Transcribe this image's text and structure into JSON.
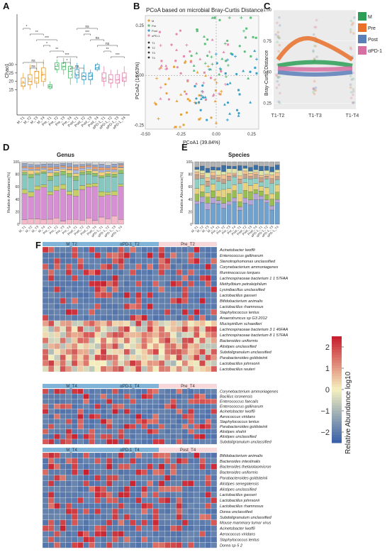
{
  "panel_letters": [
    "A",
    "B",
    "C",
    "D",
    "E",
    "F"
  ],
  "colors": {
    "M": "#e8a23c",
    "Pre": "#5bbf7a",
    "Post": "#3aa0c9",
    "aPD1": "#e48ab0",
    "heat_low": "#3b62a8",
    "heat_mid": "#f6f1c0",
    "heat_high": "#c8202f",
    "sig_green": "#2e9e57",
    "sig_orange": "#e8702a",
    "sig_blue": "#5a7fb8",
    "sig_pink": "#d86fa3"
  },
  "chart_data": [
    {
      "id": "A",
      "type": "box",
      "ylabel": "Chao1",
      "ylim": [
        0,
        60
      ],
      "yticks": [
        15,
        20,
        25,
        30
      ],
      "categories": [
        "M_T1",
        "M_T2",
        "M_T3",
        "M_T4",
        "Pre_T1",
        "Pre_T2",
        "Pre_T3",
        "Pre_T4",
        "Post_T1",
        "Post_T2",
        "Post_T3",
        "Post_T4",
        "αPD-1_T1",
        "αPD-1_T2",
        "αPD-1_T3",
        "αPD-1_T4"
      ],
      "group_colors": [
        "#e8a23c",
        "#e8a23c",
        "#e8a23c",
        "#e8a23c",
        "#5bbf7a",
        "#5bbf7a",
        "#5bbf7a",
        "#5bbf7a",
        "#3aa0c9",
        "#3aa0c9",
        "#3aa0c9",
        "#3aa0c9",
        "#e48ab0",
        "#e48ab0",
        "#e48ab0",
        "#e48ab0"
      ],
      "medians": [
        19,
        20,
        22,
        24,
        17,
        29,
        29,
        26,
        24,
        23,
        23,
        28,
        22,
        21,
        21,
        22
      ],
      "q1": [
        17,
        18,
        19,
        20,
        16,
        27,
        27,
        22,
        22,
        21,
        21,
        27,
        20,
        19,
        19,
        20
      ],
      "q3": [
        22,
        24,
        26,
        28,
        18,
        31,
        31,
        29,
        27,
        25,
        25,
        30,
        25,
        24,
        24,
        25
      ],
      "whisker_low": [
        15,
        15,
        16,
        17,
        15,
        25,
        24,
        18,
        19,
        18,
        18,
        26,
        17,
        16,
        16,
        17
      ],
      "whisker_high": [
        25,
        30,
        31,
        33,
        20,
        33,
        34,
        34,
        31,
        30,
        27,
        31,
        29,
        27,
        27,
        29
      ],
      "significance": [
        "*",
        "**",
        "***",
        "*",
        "**",
        "***",
        "*",
        "ns",
        "ns",
        "***",
        "ns",
        "ns",
        "**",
        "***",
        "ns",
        "ns"
      ]
    },
    {
      "id": "B",
      "type": "scatter",
      "title": "PCoA based on microbial Bray-Curtis Distance",
      "xlabel": "PCoA1 (39.84%)",
      "ylabel": "PCoA2 (16.63%)",
      "xlim": [
        -0.5,
        0.3
      ],
      "ylim": [
        -0.27,
        0.3
      ],
      "xticks": [
        -0.5,
        -0.25,
        0.0,
        0.25
      ],
      "yticks": [
        -0.25,
        0.0,
        0.25
      ],
      "legend_groups": [
        "M",
        "Pre",
        "Post",
        "αPD-1"
      ],
      "legend_timepoints": [
        "T1",
        "T2",
        "T3",
        "T4"
      ],
      "legend_placement": "top-left"
    },
    {
      "id": "C",
      "type": "line",
      "ylabel": "Bray-Curtis Distance",
      "ylim": [
        0.2,
        1.0
      ],
      "yticks": [
        0.25,
        0.5,
        0.75,
        1.0
      ],
      "categories": [
        "T1-T2",
        "T1-T3",
        "T1-T4"
      ],
      "series": [
        {
          "name": "M",
          "values": [
            0.55,
            0.58,
            0.55
          ]
        },
        {
          "name": "Pre",
          "values": [
            0.6,
            0.76,
            0.6
          ]
        },
        {
          "name": "Post",
          "values": [
            0.5,
            0.48,
            0.5
          ]
        },
        {
          "name": "αPD-1",
          "values": [
            0.53,
            0.52,
            0.53
          ]
        }
      ],
      "legend_placement": "right"
    },
    {
      "id": "D",
      "type": "stacked-bar",
      "title": "Genus",
      "ylabel": "Relative Abundance(%)",
      "ylim": [
        0,
        100
      ],
      "yticks": [
        0,
        20,
        40,
        60,
        80,
        100
      ],
      "categories": [
        "M_T1",
        "M_T2",
        "M_T3",
        "M_T4",
        "Pre_T1",
        "Pre_T2",
        "Pre_T3",
        "Pre_T4",
        "Post_T1",
        "Post_T2",
        "Post_T3",
        "Post_T4",
        "αPD-1_T1",
        "αPD-1_T2",
        "αPD-1_T3",
        "αPD-1_T4"
      ],
      "layer_colors": [
        "#f6b9c9",
        "#d58fd2",
        "#c6cf66",
        "#86c7c0",
        "#8fc06a",
        "#f1d17c",
        "#a9b9e0",
        "#f3a36c",
        "#96a6c9",
        "#d6d6d6"
      ]
    },
    {
      "id": "E",
      "type": "stacked-bar",
      "title": "Species",
      "ylabel": "Relative Abundance(%)",
      "ylim": [
        0,
        100
      ],
      "yticks": [
        0,
        20,
        40,
        60,
        80,
        100
      ],
      "categories": [
        "M_T1",
        "M_T2",
        "M_T3",
        "M_T4",
        "Pre_T1",
        "Pre_T2",
        "Pre_T3",
        "Pre_T4",
        "Post_T1",
        "Post_T2",
        "Post_T3",
        "Post_T4",
        "αPD-1_T1",
        "αPD-1_T2",
        "αPD-1_T3",
        "αPD-1_T4"
      ],
      "layer_colors": [
        "#6fa2cf",
        "#b6a4d8",
        "#98bd52",
        "#e8d27c",
        "#8ed0c4",
        "#c3a08a",
        "#f4c18f",
        "#dfe5a6",
        "#3c6fa4",
        "#b3b3b3"
      ]
    },
    {
      "id": "F",
      "type": "heatmap",
      "colorbar_label": "Relative Abundance log10",
      "colorbar_ticks": [
        2,
        1,
        0,
        -1,
        -2
      ],
      "blocks": [
        {
          "groups": [
            "M_T2",
            "αPD-1_T2",
            "Pre_T2"
          ],
          "rows": [
            "Acinetobacter lwoffii",
            "Enterococcus gallinarum",
            "Stenotrophomonas unclassified",
            "Corynebacterium ammoniagenes",
            "Ruminococcus torques",
            "Lachnospiraceae bacterium 1 1 57FAA",
            "Methylibium petroleiphilum",
            "Lysinibacillus unclassified",
            "Lactobacillus gasseri",
            "Bifidobacterium animalis",
            "Lactobacillus rhamnosus",
            "Staphylococcus lentus",
            "Anaerotruncus sp G3 2012",
            "Mucispirillum schaedleri",
            "Lachnospiraceae bacterium 3 1 46FAA",
            "Lachnospiraceae bacterium 8 1 57FAA",
            "Bacteroides uniformis",
            "Alistipes unclassified",
            "Subdoligranulum unclassified",
            "Parabacteroides goldsteinii",
            "Lactobacillus johnsonii",
            "Lactobacillus reuteri"
          ]
        },
        {
          "groups": [
            "M_T4",
            "αPD-1_T4",
            "Pre_T4"
          ],
          "rows": [
            "Corynebacterium ammoniagenes",
            "Bacillus isronensis",
            "Enterococcus faecalis",
            "Enterococcus gallinarum",
            "Acinetobacter lwoffii",
            "Aerococcus viridans",
            "Staphylococcus lentus",
            "Parabacteroides goldsteinii",
            "Alistipes shahii",
            "Alistipes unclassified",
            "Subdoligranulum unclassified"
          ]
        },
        {
          "groups": [
            "M_T4",
            "αPD-1_T4",
            "Post_T4"
          ],
          "rows": [
            "Bifidobacterium animalis",
            "Bacteroides intestinalis",
            "Bacteroides thetaiotaomicron",
            "Bacteroides uniformis",
            "Parabacteroides goldsteinii",
            "Alistipes senegalensis",
            "Alistipes unclassified",
            "Lactobacillus gasseri",
            "Lactobacillus johnsonii",
            "Lactobacillus rhamnosus",
            "Dorea unclassified",
            "Subdoligranulum unclassified",
            "Mouse mammary tumor virus",
            "Acinetobacter lwoffii",
            "Aerococcus viridans",
            "Staphylococcus lentus",
            "Dorea sp 5 2"
          ]
        }
      ]
    }
  ]
}
